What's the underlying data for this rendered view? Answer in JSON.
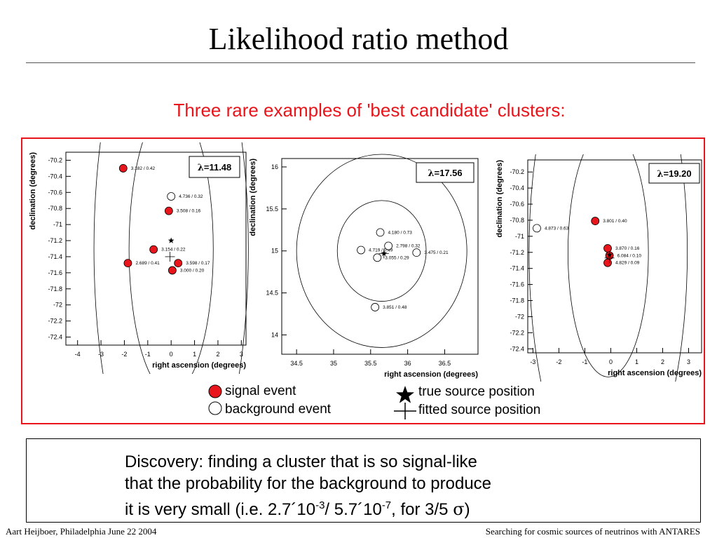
{
  "slide": {
    "title": "Likelihood ratio method",
    "subtitle": "Three rare examples of 'best candidate' clusters:",
    "discovery_lines": [
      "Discovery: finding a cluster that is so signal-like",
      "that the probability for the background to produce"
    ],
    "discovery_last": {
      "pre": "it is very small (i.e. 2.7´10",
      "sup1": "-3",
      "mid": "/ 5.7´10",
      "sup2": "-7",
      "post": ", for 3/5 ",
      "sigma": "σ",
      "close": ")"
    },
    "footer_left": "Aart Heijboer, Philadelphia June 22 2004",
    "footer_right": "Searching for cosmic sources of neutrinos with ANTARES"
  },
  "legend": {
    "signal": "signal event",
    "background": "background event",
    "true_source": "true source position",
    "fitted_source": "fitted source position"
  },
  "colors": {
    "signal": "#e8161c",
    "accent_red": "#e8161c"
  },
  "chart_data": [
    {
      "type": "scatter",
      "xlabel": "right ascension (degrees)",
      "ylabel": "declination (degrees)",
      "lambda": "=11.48",
      "xlim": [
        -4.5,
        3.2
      ],
      "ylim": [
        -72.5,
        -70.1
      ],
      "xticks": [
        -4,
        -3,
        -2,
        -1,
        0,
        1,
        2,
        3
      ],
      "yticks": [
        -70.2,
        -70.4,
        -70.6,
        -70.8,
        -71,
        -71.2,
        -71.4,
        -71.6,
        -71.8,
        -72,
        -72.2,
        -72.4
      ],
      "inner_circle": {
        "center": [
          0,
          -71.3
        ],
        "radius": 1.8
      },
      "outer_circle": {
        "center": [
          0,
          -71.3
        ],
        "radius": 3.3
      },
      "true_source": [
        0,
        -71.2
      ],
      "fitted_source": [
        -0.05,
        -71.4
      ],
      "events": [
        {
          "x": -2.05,
          "y": -70.3,
          "kind": "signal",
          "label": "3.182 / 0.42"
        },
        {
          "x": 0.0,
          "y": -70.65,
          "kind": "background",
          "label": "4.736 / 0.32"
        },
        {
          "x": -0.1,
          "y": -70.83,
          "kind": "signal",
          "label": "3.508 / 0.16"
        },
        {
          "x": -0.75,
          "y": -71.31,
          "kind": "signal",
          "label": "3.154 / 0.22"
        },
        {
          "x": -1.85,
          "y": -71.48,
          "kind": "signal",
          "label": "2.689 / 0.41"
        },
        {
          "x": 0.3,
          "y": -71.48,
          "kind": "signal",
          "label": "3.598 / 0.17"
        },
        {
          "x": 0.05,
          "y": -71.57,
          "kind": "signal",
          "label": "3.000 / 0.20"
        }
      ]
    },
    {
      "type": "scatter",
      "xlabel": "right ascension (degrees)",
      "ylabel": "declination (degrees)",
      "lambda": "=17.56",
      "xlim": [
        34.3,
        36.95
      ],
      "ylim": [
        13.77,
        16.1
      ],
      "xticks": [
        34.5,
        35,
        35.5,
        36,
        36.5
      ],
      "yticks": [
        16,
        15.5,
        15,
        14.5,
        14
      ],
      "inner_circle": {
        "center": [
          35.65,
          15.0
        ],
        "radius": 0.6
      },
      "outer_circle": {
        "center": [
          35.65,
          15.0
        ],
        "radius": 1.15
      },
      "true_source": [
        35.68,
        14.97
      ],
      "fitted_source": [
        35.68,
        14.97
      ],
      "events": [
        {
          "x": 35.63,
          "y": 15.22,
          "kind": "background",
          "label": "4.180 / 0.73"
        },
        {
          "x": 35.37,
          "y": 15.01,
          "kind": "background",
          "label": "4.719 / 0.49"
        },
        {
          "x": 35.74,
          "y": 15.06,
          "kind": "background",
          "label": "2.798 / 0.32"
        },
        {
          "x": 36.12,
          "y": 14.98,
          "kind": "background",
          "label": "3.475 / 0.21"
        },
        {
          "x": 35.59,
          "y": 14.92,
          "kind": "background",
          "label": "3.055 / 0.29"
        },
        {
          "x": 35.56,
          "y": 14.33,
          "kind": "background",
          "label": "3.851 / 0.48"
        }
      ]
    },
    {
      "type": "scatter",
      "xlabel": "right ascension (degrees)",
      "ylabel": "declination (degrees)",
      "lambda": "=19.20",
      "xlim": [
        -3.2,
        3.5
      ],
      "ylim": [
        -72.45,
        -70.05
      ],
      "xticks": [
        -3,
        -2,
        -1,
        0,
        1,
        2,
        3
      ],
      "yticks": [
        -70.2,
        -70.4,
        -70.6,
        -70.8,
        -71,
        -71.2,
        -71.4,
        -71.6,
        -71.8,
        -72,
        -72.2,
        -72.4
      ],
      "inner_circle": {
        "center": [
          -0.1,
          -71.2
        ],
        "radius": 1.55
      },
      "outer_circle": {
        "center": [
          -0.1,
          -71.2
        ],
        "radius": 3.05
      },
      "true_source": [
        -0.05,
        -71.23
      ],
      "fitted_source": [
        -0.05,
        -71.27
      ],
      "events": [
        {
          "x": -0.6,
          "y": -70.81,
          "kind": "signal",
          "label": "3.801 / 0.40"
        },
        {
          "x": -2.85,
          "y": -70.9,
          "kind": "background",
          "label": "4.873 / 0.63"
        },
        {
          "x": -0.12,
          "y": -71.15,
          "kind": "signal",
          "label": "3.870 / 0.16"
        },
        {
          "x": -0.05,
          "y": -71.24,
          "kind": "signal",
          "label": "6.084 / 0.10"
        },
        {
          "x": -0.12,
          "y": -71.33,
          "kind": "signal",
          "label": "4.829 / 0.09"
        }
      ]
    }
  ]
}
